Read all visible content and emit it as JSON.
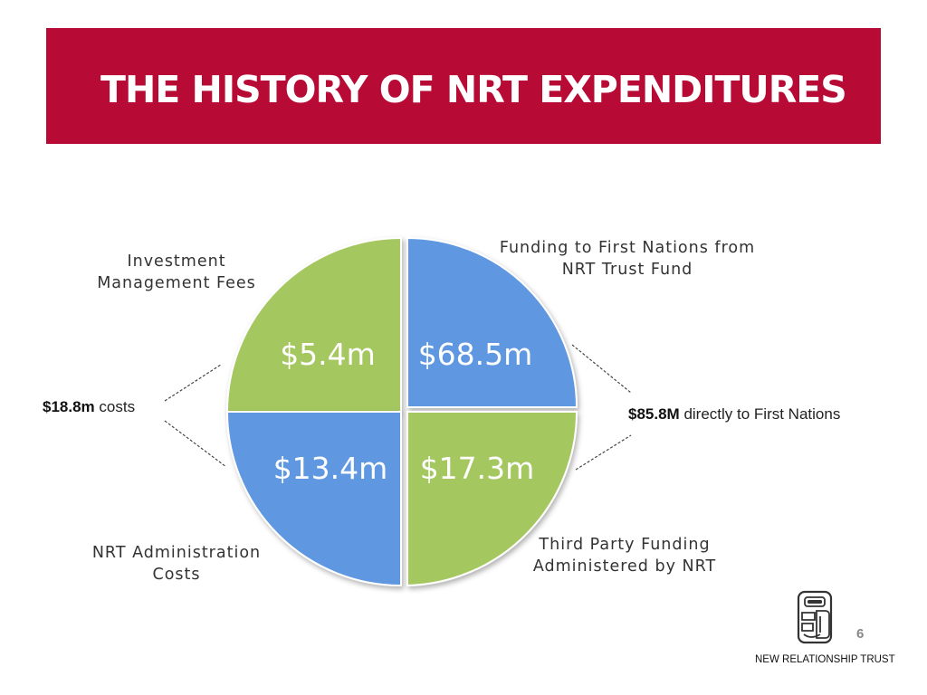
{
  "slide": {
    "title": "THE HISTORY OF NRT EXPENDITURES",
    "page_number": "6",
    "org_name": "NEW RELATIONSHIP TRUST",
    "colors": {
      "title_bar": "#b70b35",
      "green": "#a4c75f",
      "blue": "#5f98e1"
    }
  },
  "quadrants": [
    {
      "id": "investment",
      "amount": "$5.4m",
      "label_lines": [
        "Investment",
        "Management  Fees"
      ],
      "color": "green"
    },
    {
      "id": "funding",
      "amount": "$68.5m",
      "label_lines": [
        "Funding  to First Nations from",
        "NRT Trust Fund"
      ],
      "color": "blue"
    },
    {
      "id": "admin",
      "amount": "$13.4m",
      "label_lines": [
        "NRT Administration",
        "Costs"
      ],
      "color": "blue"
    },
    {
      "id": "third-party",
      "amount": "$17.3m",
      "label_lines": [
        "Third Party Funding",
        "Administered by NRT"
      ],
      "color": "green"
    }
  ],
  "summaries": {
    "left": {
      "value": "$18.8m",
      "text": "costs"
    },
    "right": {
      "value": "$85.8M",
      "text": "directly to First Nations"
    }
  }
}
